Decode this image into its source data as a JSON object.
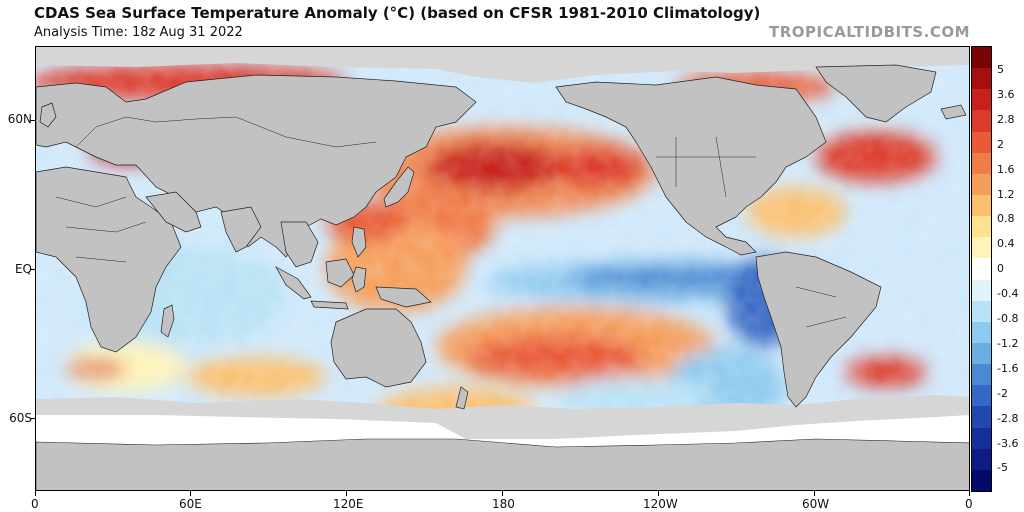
{
  "title": "CDAS Sea Surface Temperature Anomaly (°C) (based on CFSR 1981-2010 Climatology)",
  "subtitle": "Analysis Time: 18z Aug 31 2022",
  "credit": "TROPICALTIDBITS.COM",
  "lat_labels": [
    "60N",
    "EQ",
    "60S"
  ],
  "lon_labels": [
    "0",
    "60E",
    "120E",
    "180",
    "120W",
    "60W",
    "0"
  ],
  "colorbar": {
    "labels": [
      "5",
      "3.6",
      "2.8",
      "2",
      "1.6",
      "1.2",
      "0.8",
      "0.4",
      "0",
      "-0.4",
      "-0.8",
      "-1.2",
      "-1.6",
      "-2",
      "-2.8",
      "-3.6",
      "-5"
    ],
    "colors": [
      "#7a0403",
      "#a50f0f",
      "#c8201c",
      "#dc3a2a",
      "#e85a38",
      "#f07c48",
      "#f59e5c",
      "#fac070",
      "#fde28e",
      "#fef3b8",
      "#ffffff",
      "#e0f3fb",
      "#b8e2f5",
      "#8ecaee",
      "#6aaee2",
      "#4a8ad4",
      "#3468c4",
      "#2248b0",
      "#16309a",
      "#0c1c84",
      "#040a6a"
    ]
  },
  "colors": {
    "land": "#c2c2c2",
    "ice": "#d6d6d6",
    "ocean_base": "#dcefff"
  }
}
